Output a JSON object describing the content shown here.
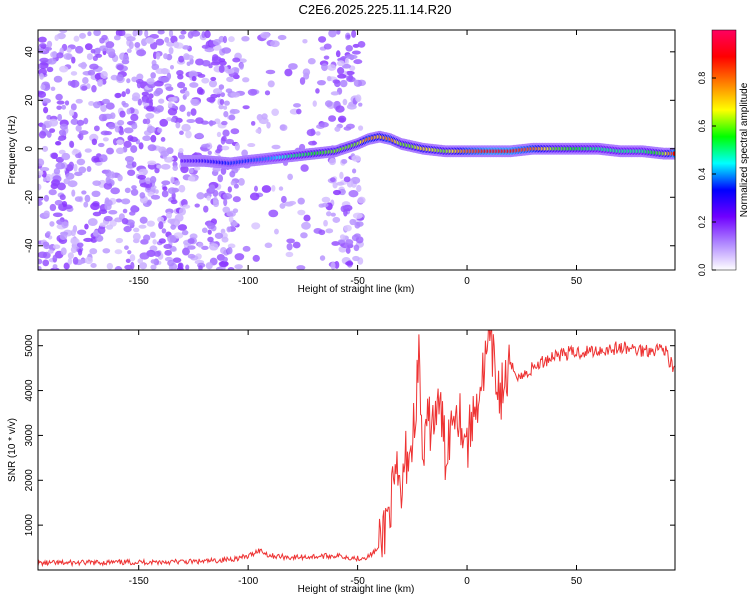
{
  "title": "C2E6.2025.225.11.14.R20",
  "chart_data": [
    {
      "type": "heatmap",
      "xlabel": "Height of straight line (km)",
      "ylabel": "Frequency (Hz)",
      "xlim": [
        -196,
        95
      ],
      "ylim": [
        -50,
        49
      ],
      "xticks": [
        -150,
        -100,
        -50,
        0,
        50
      ],
      "yticks": [
        -40,
        -20,
        0,
        20,
        40
      ],
      "colorbar": {
        "label": "Normalized spectral amplitude",
        "range": [
          0,
          1
        ],
        "ticks": [
          0,
          0.2,
          0.4,
          0.6,
          0.8
        ],
        "tick_labels": [
          "0.0",
          "0.2",
          "0.4",
          "0.6",
          "0.8"
        ],
        "colormap": [
          "#ffffff",
          "#b088ff",
          "#7000ff",
          "#0000ff",
          "#00ffff",
          "#00ff00",
          "#ffff00",
          "#ff8000",
          "#ff0000",
          "#ff0060"
        ]
      },
      "ridge": {
        "x": [
          -130,
          -120,
          -108,
          -100,
          -90,
          -80,
          -70,
          -60,
          -50,
          -45,
          -40,
          -35,
          -30,
          -25,
          -20,
          -10,
          0,
          10,
          20,
          30,
          40,
          50,
          60,
          70,
          80,
          90,
          95
        ],
        "y": [
          -5,
          -5,
          -6,
          -5,
          -4,
          -3,
          -2,
          -1,
          2,
          4,
          5,
          4,
          2,
          1,
          0,
          -1,
          -1,
          -1,
          -1,
          0,
          0,
          0,
          0,
          -1,
          -1,
          -2,
          -2
        ],
        "amplitude": [
          0.25,
          0.3,
          0.35,
          0.35,
          0.4,
          0.5,
          0.55,
          0.6,
          0.6,
          0.8,
          0.7,
          0.8,
          0.6,
          0.6,
          0.7,
          0.6,
          0.8,
          0.9,
          0.9,
          0.8,
          0.6,
          0.55,
          0.5,
          0.5,
          0.5,
          0.6,
          0.9
        ]
      },
      "noise_region_x": [
        -196,
        -50
      ]
    },
    {
      "type": "line",
      "xlabel": "Height of straight line (km)",
      "ylabel": "SNR (10 * v/v)",
      "xlim": [
        -196,
        95
      ],
      "ylim": [
        0,
        5350
      ],
      "xticks": [
        -150,
        -100,
        -50,
        0,
        50
      ],
      "yticks": [
        1000,
        2000,
        3000,
        4000,
        5000
      ],
      "line_color": "#ee3333",
      "series": [
        {
          "x": [
            -196,
            -180,
            -160,
            -140,
            -120,
            -110,
            -100,
            -95,
            -90,
            -80,
            -70,
            -60,
            -50,
            -45,
            -40,
            -38,
            -35,
            -32,
            -30,
            -28,
            -25,
            -22,
            -20,
            -18,
            -15,
            -12,
            -10,
            -5,
            0,
            5,
            8,
            10,
            15,
            20,
            25,
            30,
            40,
            50,
            60,
            70,
            80,
            90,
            95
          ],
          "y": [
            150,
            160,
            170,
            180,
            190,
            230,
            300,
            450,
            320,
            280,
            300,
            320,
            260,
            300,
            500,
            900,
            1500,
            2000,
            1600,
            2500,
            2800,
            4700,
            2300,
            3200,
            3400,
            3600,
            2600,
            3800,
            2800,
            3900,
            4500,
            5100,
            3900,
            4500,
            4300,
            4500,
            4800,
            4850,
            4900,
            4950,
            4900,
            4950,
            4400
          ]
        }
      ]
    }
  ]
}
